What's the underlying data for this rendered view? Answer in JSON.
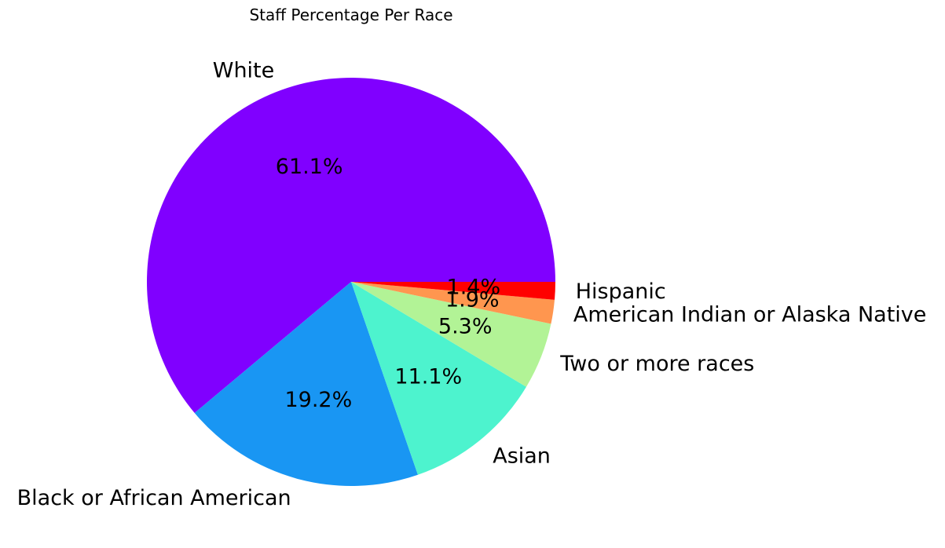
{
  "chart_data": {
    "type": "pie",
    "title": "Staff Percentage Per Race",
    "start_angle_deg": 0,
    "direction": "counterclockwise",
    "slices": [
      {
        "label": "White",
        "value": 61.1,
        "pct_label": "61.1%",
        "color": "#8000ff"
      },
      {
        "label": "Black or African American",
        "value": 19.2,
        "pct_label": "19.2%",
        "color": "#1996f3"
      },
      {
        "label": "Asian",
        "value": 11.1,
        "pct_label": "11.1%",
        "color": "#4df3ce"
      },
      {
        "label": "Two or more races",
        "value": 5.3,
        "pct_label": "5.3%",
        "color": "#b2f396"
      },
      {
        "label": "American Indian or Alaska Native",
        "value": 1.9,
        "pct_label": "1.9%",
        "color": "#ff964f"
      },
      {
        "label": "Hispanic",
        "value": 1.4,
        "pct_label": "1.4%",
        "color": "#ff0000"
      }
    ]
  }
}
